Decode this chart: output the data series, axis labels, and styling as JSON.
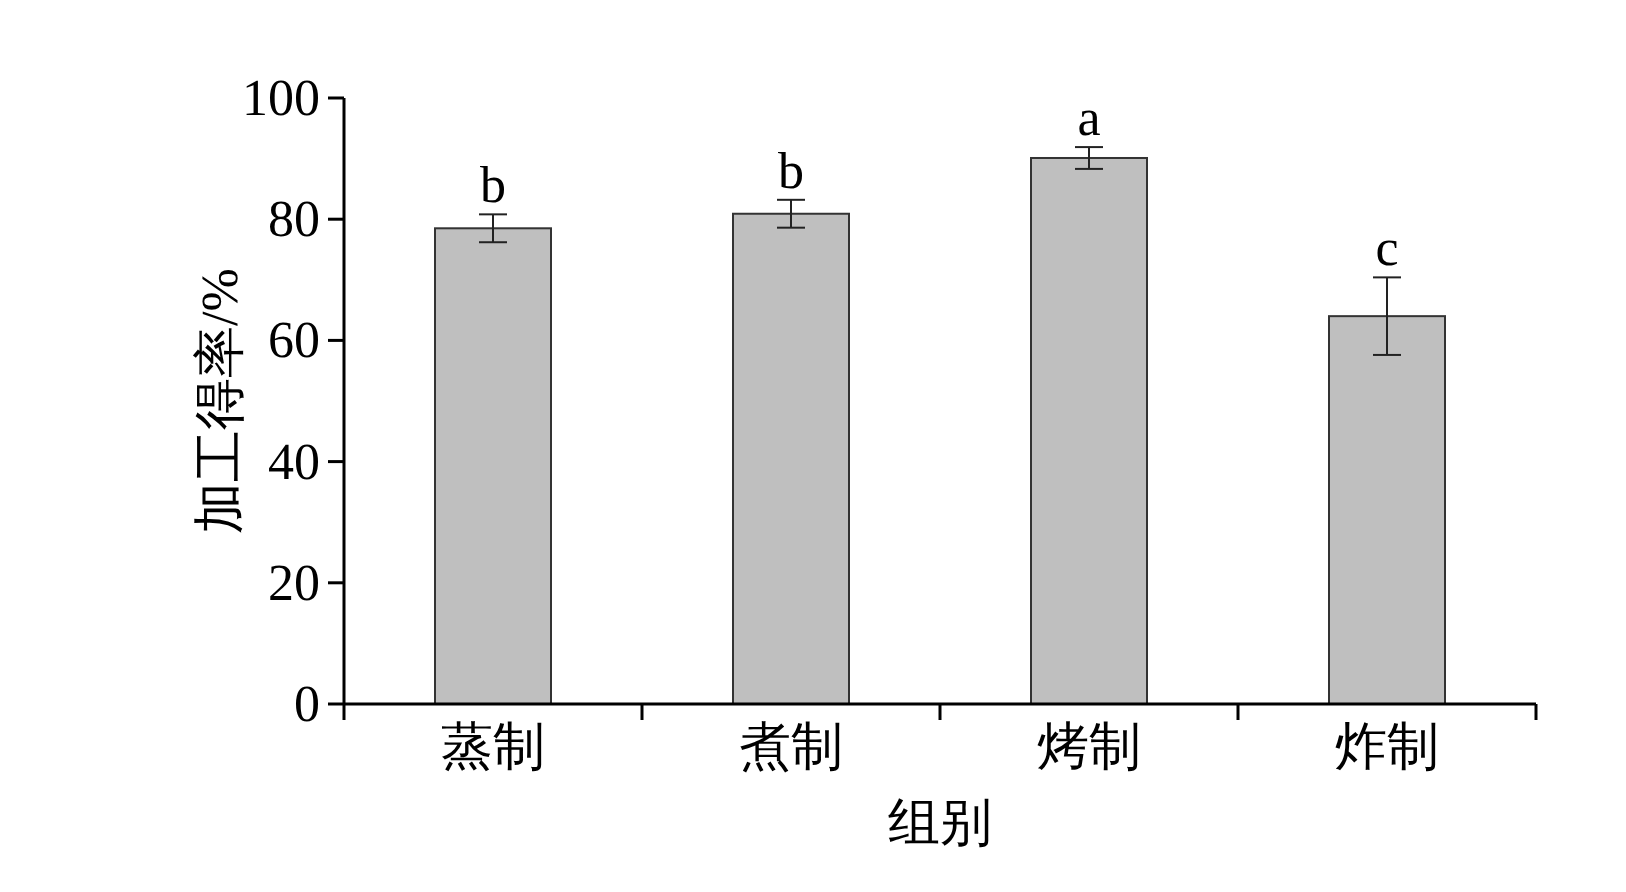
{
  "chart_data": {
    "type": "bar",
    "xlabel": "组别",
    "ylabel": "加工得率/%",
    "categories": [
      "蒸制",
      "煮制",
      "烤制",
      "炸制"
    ],
    "values": [
      78.5,
      80.9,
      90.1,
      64.0
    ],
    "errors": [
      2.3,
      2.3,
      1.8,
      6.4
    ],
    "color": "#bfbfbf",
    "ylim": [
      0,
      100
    ],
    "yticks": [
      0,
      20,
      40,
      60,
      80,
      100
    ],
    "annotations": [
      {
        "text": "b",
        "x": "蒸制",
        "y": 80.8
      },
      {
        "text": "b",
        "x": "煮制",
        "y": 83.2
      },
      {
        "text": "a",
        "x": "烤制",
        "y": 91.9
      },
      {
        "text": "c",
        "x": "炸制",
        "y": 70.4
      }
    ]
  }
}
